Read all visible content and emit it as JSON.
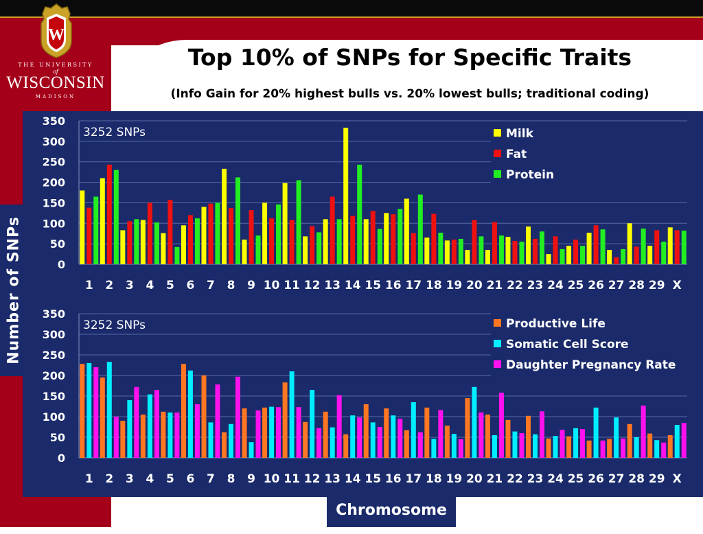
{
  "slide": {
    "title": "Top 10% of SNPs for Specific Traits",
    "subtitle": "(Info Gain for 20% highest bulls vs. 20% lowest bulls; traditional coding)",
    "ylabel": "Number of SNPs",
    "xlabel": "Chromosome"
  },
  "logo": {
    "crest_letter": "W",
    "line1": "THE UNIVERSITY",
    "line2": "of",
    "line3": "WISCONSIN",
    "line4": "MADISON"
  },
  "colors": {
    "background_panel": "#1a2a6a",
    "brand_red": "#a5001a",
    "milk": "#ffff00",
    "fat": "#ee1111",
    "protein": "#22ee22",
    "productive_life": "#ff7722",
    "somatic_cell_score": "#00eeff",
    "daughter_pregnancy_rate": "#ff11ee"
  },
  "chart_data": [
    {
      "type": "bar",
      "annotation": "3252 SNPs",
      "categories": [
        "1",
        "2",
        "3",
        "4",
        "5",
        "6",
        "7",
        "8",
        "9",
        "10",
        "11",
        "12",
        "13",
        "14",
        "15",
        "16",
        "17",
        "18",
        "19",
        "20",
        "21",
        "22",
        "23",
        "24",
        "25",
        "26",
        "27",
        "28",
        "29",
        "X"
      ],
      "ylim": [
        0,
        350
      ],
      "yticks": [
        0,
        50,
        100,
        150,
        200,
        250,
        300,
        350
      ],
      "grid": true,
      "legend_position": "top-right",
      "series": [
        {
          "name": "Milk",
          "color": "#ffff00",
          "values": [
            180,
            210,
            83,
            108,
            76,
            95,
            140,
            233,
            60,
            150,
            198,
            68,
            110,
            333,
            110,
            125,
            160,
            65,
            58,
            35,
            35,
            67,
            92,
            25,
            45,
            77,
            35,
            100,
            45,
            90
          ]
        },
        {
          "name": "Fat",
          "color": "#ee1111",
          "values": [
            138,
            243,
            105,
            150,
            157,
            120,
            148,
            137,
            132,
            112,
            108,
            93,
            165,
            118,
            130,
            122,
            76,
            123,
            60,
            108,
            103,
            57,
            62,
            68,
            60,
            95,
            17,
            43,
            83,
            83
          ]
        },
        {
          "name": "Protein",
          "color": "#22ee22",
          "values": [
            165,
            230,
            110,
            102,
            42,
            112,
            150,
            212,
            70,
            146,
            205,
            78,
            110,
            243,
            86,
            135,
            170,
            77,
            62,
            68,
            70,
            55,
            80,
            37,
            45,
            85,
            37,
            87,
            55,
            82
          ]
        }
      ]
    },
    {
      "type": "bar",
      "annotation": "3252 SNPs",
      "categories": [
        "1",
        "2",
        "3",
        "4",
        "5",
        "6",
        "7",
        "8",
        "9",
        "10",
        "11",
        "12",
        "13",
        "14",
        "15",
        "16",
        "17",
        "18",
        "19",
        "20",
        "21",
        "22",
        "23",
        "24",
        "25",
        "26",
        "27",
        "28",
        "29",
        "X"
      ],
      "ylim": [
        0,
        350
      ],
      "yticks": [
        0,
        50,
        100,
        150,
        200,
        250,
        300,
        350
      ],
      "grid": true,
      "legend_position": "top-right",
      "series": [
        {
          "name": "Productive Life",
          "color": "#ff7722",
          "values": [
            228,
            195,
            90,
            105,
            112,
            228,
            200,
            62,
            120,
            122,
            183,
            87,
            112,
            57,
            130,
            120,
            67,
            122,
            78,
            145,
            105,
            92,
            102,
            47,
            52,
            42,
            46,
            82,
            59,
            55
          ]
        },
        {
          "name": "Somatic Cell Score",
          "color": "#00eeff",
          "values": [
            230,
            233,
            140,
            154,
            110,
            212,
            86,
            82,
            38,
            124,
            210,
            165,
            74,
            103,
            86,
            103,
            135,
            46,
            58,
            172,
            55,
            64,
            57,
            53,
            72,
            122,
            98,
            50,
            43,
            80
          ]
        },
        {
          "name": "Daughter Pregnancy Rate",
          "color": "#ff11ee",
          "values": [
            220,
            100,
            172,
            165,
            110,
            130,
            178,
            197,
            115,
            123,
            123,
            72,
            152,
            98,
            75,
            95,
            62,
            116,
            45,
            110,
            158,
            60,
            113,
            68,
            70,
            42,
            47,
            127,
            37,
            85
          ]
        }
      ]
    }
  ]
}
